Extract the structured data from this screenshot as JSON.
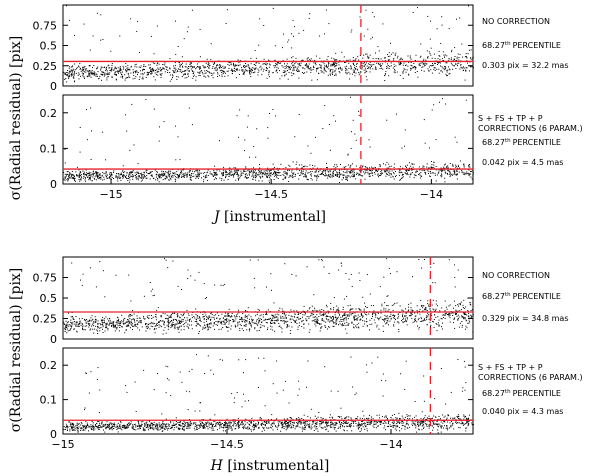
{
  "chart_data": [
    {
      "type": "scatter",
      "panel": "J-top",
      "xlim": [
        -15.15,
        -13.87
      ],
      "ylim": [
        0,
        1.0
      ],
      "yticks": [
        0,
        0.25,
        0.5,
        0.75
      ],
      "yticklabels": [
        "0",
        "0.25",
        "0.5",
        "0.75"
      ],
      "percentile_line": 0.303,
      "vline_x": -14.22,
      "point_seed": 11,
      "point_count": 1500,
      "point_spread": 0.14,
      "annotations": [
        "NO CORRECTION",
        "68.27",
        "th",
        "PERCENTILE",
        "0.303 pix = 32.2 mas"
      ]
    },
    {
      "type": "scatter",
      "panel": "J-bottom",
      "xlim": [
        -15.15,
        -13.87
      ],
      "ylim": [
        0,
        0.25
      ],
      "yticks": [
        0,
        0.1,
        0.2
      ],
      "yticklabels": [
        "0",
        "0.1",
        "0.2"
      ],
      "xticks": [
        -15,
        -14.5,
        -14
      ],
      "xticklabels": [
        "−15",
        "−14.5",
        "−14"
      ],
      "percentile_line": 0.042,
      "vline_x": -14.22,
      "point_seed": 23,
      "point_count": 1500,
      "point_spread": 0.022,
      "annotations": [
        "S + FS + TP + P",
        "CORRECTIONS (6 PARAM.)",
        "68.27",
        "th",
        "PERCENTILE",
        "0.042 pix = 4.5 mas"
      ],
      "xlabel_var": "J",
      "xlabel_rest": " [instrumental]"
    },
    {
      "type": "scatter",
      "panel": "H-top",
      "xlim": [
        -15.0,
        -13.75
      ],
      "ylim": [
        0,
        1.0
      ],
      "yticks": [
        0,
        0.25,
        0.5,
        0.75
      ],
      "yticklabels": [
        "0",
        "0.25",
        "0.5",
        "0.75"
      ],
      "percentile_line": 0.329,
      "vline_x": -13.88,
      "point_seed": 37,
      "point_count": 1700,
      "point_spread": 0.15,
      "annotations": [
        "NO CORRECTION",
        "68.27",
        "th",
        "PERCENTILE",
        "0.329 pix = 34.8 mas"
      ]
    },
    {
      "type": "scatter",
      "panel": "H-bottom",
      "xlim": [
        -15.0,
        -13.75
      ],
      "ylim": [
        0,
        0.25
      ],
      "yticks": [
        0,
        0.1,
        0.2
      ],
      "yticklabels": [
        "0",
        "0.1",
        "0.2"
      ],
      "xticks": [
        -15,
        -14.5,
        -14
      ],
      "xticklabels": [
        "−15",
        "−14.5",
        "−14"
      ],
      "percentile_line": 0.04,
      "vline_x": -13.88,
      "point_seed": 53,
      "point_count": 1700,
      "point_spread": 0.021,
      "annotations": [
        "S + FS + TP + P",
        "CORRECTIONS (6 PARAM.)",
        "68.27",
        "th",
        "PERCENTILE",
        "0.040 pix = 4.3 mas"
      ],
      "xlabel_var": "H",
      "xlabel_rest": " [instrumental]"
    }
  ],
  "ylabel": "σ(Radial residual) [pix]",
  "colors": {
    "points": "#000000",
    "line": "#e8202a",
    "axes": "#000000"
  }
}
